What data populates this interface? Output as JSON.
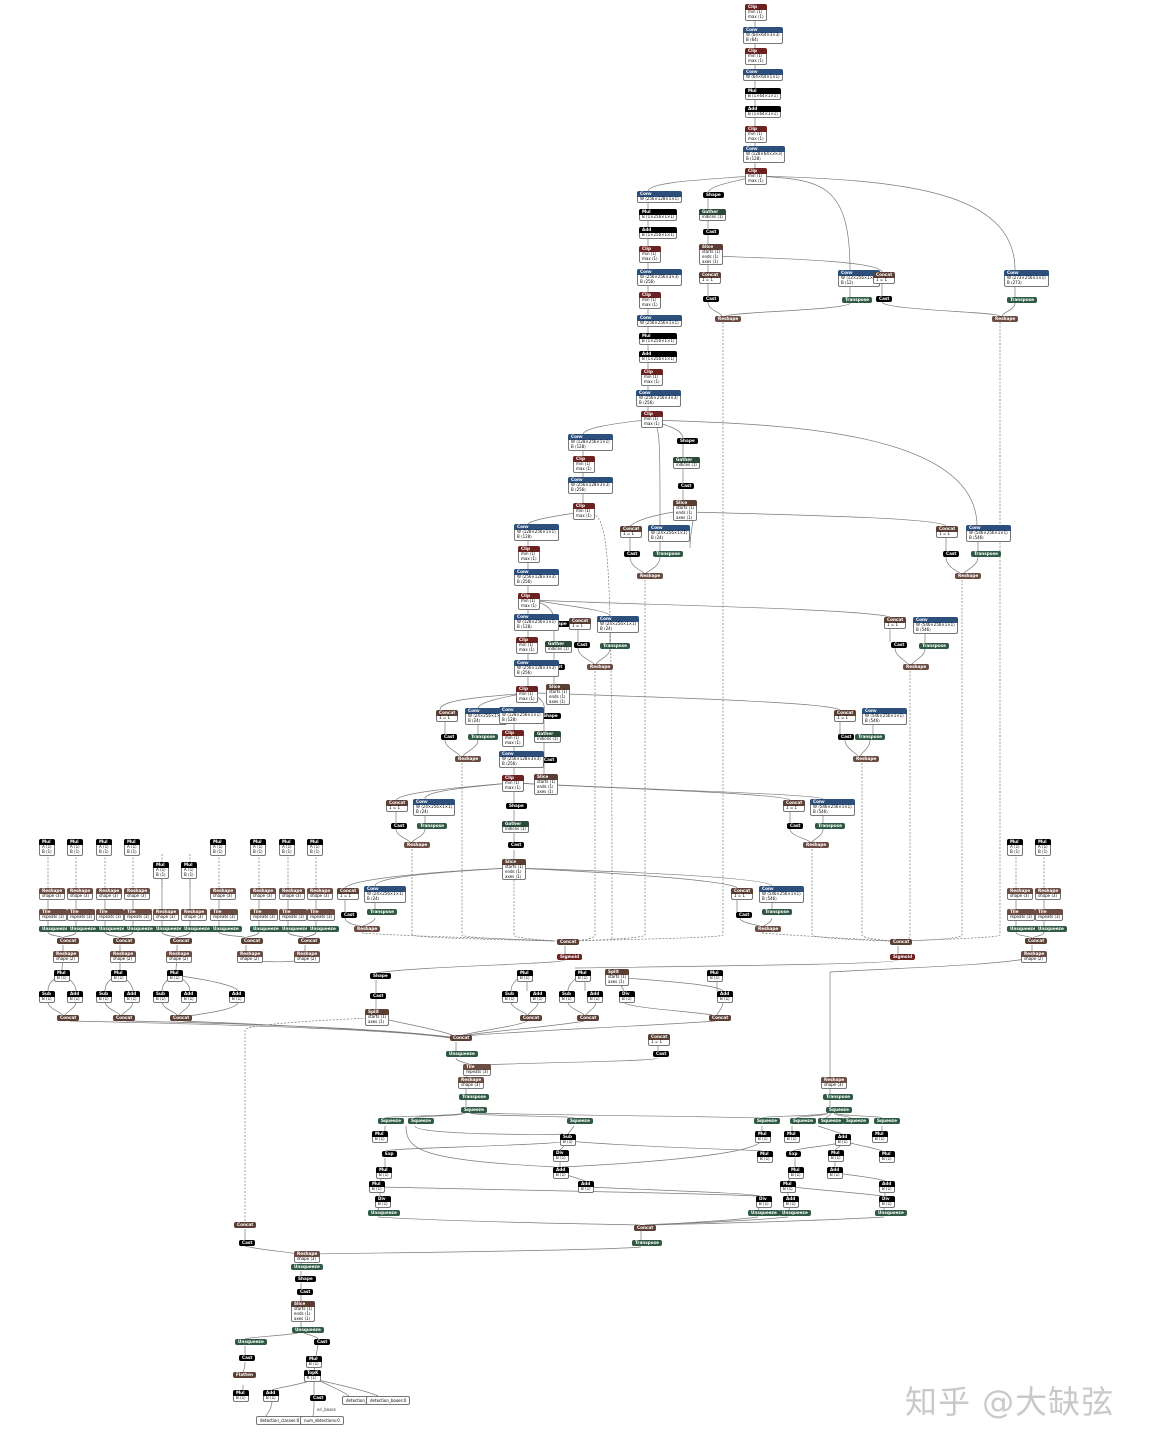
{
  "colors": {
    "Clip": "#6b2220",
    "Conv": "#2d4f7c",
    "Mul": "#000000",
    "Add": "#000000",
    "Sub": "#000000",
    "Div": "#000000",
    "Shape": "#000000",
    "Cast": "#000000",
    "Exp": "#000000",
    "Gather": "#2c4a3a",
    "Slice": "#5b3f35",
    "Concat": "#5b3f35",
    "Reshape": "#6c4d44",
    "Transpose": "#2f5a44",
    "Unsqueeze": "#2f5a44",
    "Squeeze": "#2f5a44",
    "Tile": "#6c4d44",
    "Sigmoid": "#6b2220",
    "Split": "#5b3f35",
    "Flatten": "#5b3f35",
    "TopK": "#000000",
    "edge": "#7a7a7a"
  },
  "watermark": "知乎 @大缺弦",
  "outputs": [
    "detection_boxes:0",
    "detection_scores:0",
    "detection_classes:0",
    "num_detections:0"
  ],
  "out_label": "ori_boxes",
  "nodes": [
    {
      "op": "Clip",
      "rows": [
        "min ⟨1⟩",
        "max ⟨1⟩"
      ]
    },
    {
      "op": "Conv",
      "rows": [
        "W ⟨64×64×3×3⟩",
        "B ⟨64⟩"
      ]
    },
    {
      "op": "Clip",
      "rows": [
        "min ⟨1⟩",
        "max ⟨1⟩"
      ]
    },
    {
      "op": "Conv",
      "rows": [
        "W ⟨64×64×1×1⟩"
      ]
    },
    {
      "op": "Mul",
      "rows": [
        "B ⟨1×64×1×1⟩"
      ]
    },
    {
      "op": "Add",
      "rows": [
        "B ⟨1×64×1×1⟩"
      ]
    },
    {
      "op": "Clip",
      "rows": [
        "min ⟨1⟩",
        "max ⟨1⟩"
      ]
    },
    {
      "op": "Conv",
      "rows": [
        "W ⟨128×64×3×3⟩",
        "B ⟨128⟩"
      ]
    },
    {
      "op": "Clip",
      "rows": [
        "min ⟨1⟩",
        "max ⟨1⟩"
      ]
    },
    {
      "op": "Conv",
      "rows": [
        "W ⟨256×128×1×1⟩"
      ]
    },
    {
      "op": "Mul",
      "rows": [
        "B ⟨1×256×1×1⟩"
      ]
    },
    {
      "op": "Add",
      "rows": [
        "B ⟨1×256×1×1⟩"
      ]
    },
    {
      "op": "Clip",
      "rows": [
        "min ⟨1⟩",
        "max ⟨1⟩"
      ]
    },
    {
      "op": "Conv",
      "rows": [
        "W ⟨256×256×3×3⟩",
        "B ⟨256⟩"
      ]
    },
    {
      "op": "Clip",
      "rows": [
        "min ⟨1⟩",
        "max ⟨1⟩"
      ]
    },
    {
      "op": "Conv",
      "rows": [
        "W ⟨256×256×1×1⟩"
      ]
    },
    {
      "op": "Mul",
      "rows": [
        "B ⟨1×256×1×1⟩"
      ]
    },
    {
      "op": "Add",
      "rows": [
        "B ⟨1×256×1×1⟩"
      ]
    },
    {
      "op": "Clip",
      "rows": [
        "min ⟨1⟩",
        "max ⟨1⟩"
      ]
    },
    {
      "op": "Conv",
      "rows": [
        "W ⟨256×256×3×3⟩",
        "B ⟨256⟩"
      ]
    },
    {
      "op": "Clip",
      "rows": [
        "min ⟨1⟩",
        "max ⟨1⟩"
      ]
    },
    {
      "op": "Shape",
      "rows": []
    },
    {
      "op": "Gather",
      "rows": [
        "indices ⟨1⟩"
      ]
    },
    {
      "op": "Cast",
      "rows": []
    },
    {
      "op": "Slice",
      "rows": [
        "starts ⟨1⟩",
        "ends ⟨1⟩",
        "axes ⟨1⟩"
      ]
    },
    {
      "op": "Concat",
      "rows": [
        "1 = 1"
      ]
    },
    {
      "op": "Cast",
      "rows": []
    },
    {
      "op": "Conv",
      "rows": [
        "W ⟨12×256×1×1⟩",
        "B ⟨12⟩"
      ]
    },
    {
      "op": "Transpose",
      "rows": []
    },
    {
      "op": "Concat",
      "rows": [
        "1 = 1"
      ]
    },
    {
      "op": "Cast",
      "rows": []
    },
    {
      "op": "Conv",
      "rows": [
        "W ⟨273×256×1×1⟩",
        "B ⟨273⟩"
      ]
    },
    {
      "op": "Transpose",
      "rows": []
    },
    {
      "op": "Reshape",
      "rows": []
    },
    {
      "op": "Reshape",
      "rows": []
    },
    {
      "op": "Conv",
      "rows": [
        "W ⟨128×256×1×1⟩",
        "B ⟨128⟩"
      ]
    },
    {
      "op": "Clip",
      "rows": [
        "min ⟨1⟩",
        "max ⟨1⟩"
      ]
    },
    {
      "op": "Conv",
      "rows": [
        "W ⟨256×128×3×3⟩",
        "B ⟨256⟩"
      ]
    },
    {
      "op": "Clip",
      "rows": [
        "min ⟨1⟩",
        "max ⟨1⟩"
      ]
    },
    {
      "op": "Shape",
      "rows": []
    },
    {
      "op": "Gather",
      "rows": [
        "indices ⟨1⟩"
      ]
    },
    {
      "op": "Cast",
      "rows": []
    },
    {
      "op": "Slice",
      "rows": [
        "starts ⟨1⟩",
        "ends ⟨1⟩",
        "axes ⟨1⟩"
      ]
    },
    {
      "op": "Concat",
      "rows": [
        "1 = 1"
      ]
    },
    {
      "op": "Conv",
      "rows": [
        "W ⟨24×256×1×1⟩",
        "B ⟨24⟩"
      ]
    },
    {
      "op": "Cast",
      "rows": []
    },
    {
      "op": "Gather",
      "rows": [
        "indices ⟨1⟩"
      ]
    },
    {
      "op": "Transpose",
      "rows": []
    },
    {
      "op": "Cast",
      "rows": []
    },
    {
      "op": "Concat",
      "rows": [
        "1 = 1"
      ]
    },
    {
      "op": "Conv",
      "rows": [
        "W ⟨546×256×1×1⟩",
        "B ⟨546⟩"
      ]
    },
    {
      "op": "Cast",
      "rows": []
    },
    {
      "op": "Transpose",
      "rows": []
    },
    {
      "op": "Reshape",
      "rows": []
    },
    {
      "op": "Reshape",
      "rows": []
    },
    {
      "op": "Mul",
      "rows": [
        "A ⟨1⟩",
        "B ⟨1⟩"
      ]
    },
    {
      "op": "Reshape",
      "rows": [
        "shape ⟨3⟩"
      ]
    },
    {
      "op": "Tile",
      "rows": [
        "repeats ⟨3⟩"
      ]
    },
    {
      "op": "Unsqueeze",
      "rows": []
    },
    {
      "op": "Concat",
      "rows": []
    },
    {
      "op": "Reshape",
      "rows": [
        "shape ⟨2⟩"
      ]
    },
    {
      "op": "Concat",
      "rows": []
    },
    {
      "op": "Sigmoid",
      "rows": []
    },
    {
      "op": "Squeeze",
      "rows": []
    },
    {
      "op": "Split",
      "rows": [
        "starts ⟨1⟩",
        "axes ⟨1⟩"
      ]
    },
    {
      "op": "Sub",
      "rows": [
        "B ⟨1⟩"
      ]
    },
    {
      "op": "Add",
      "rows": [
        "B ⟨1⟩"
      ]
    },
    {
      "op": "Div",
      "rows": [
        "B ⟨1⟩"
      ]
    },
    {
      "op": "Exp",
      "rows": []
    },
    {
      "op": "Unsqueeze",
      "rows": []
    },
    {
      "op": "Flatten",
      "rows": []
    },
    {
      "op": "TopK",
      "rows": [
        "K ⟨1⟩"
      ]
    },
    {
      "op": "Sub",
      "rows": [
        "A ⟨1⟩"
      ]
    },
    {
      "op": "Mul",
      "rows": [
        "B ⟨1⟩"
      ]
    }
  ]
}
